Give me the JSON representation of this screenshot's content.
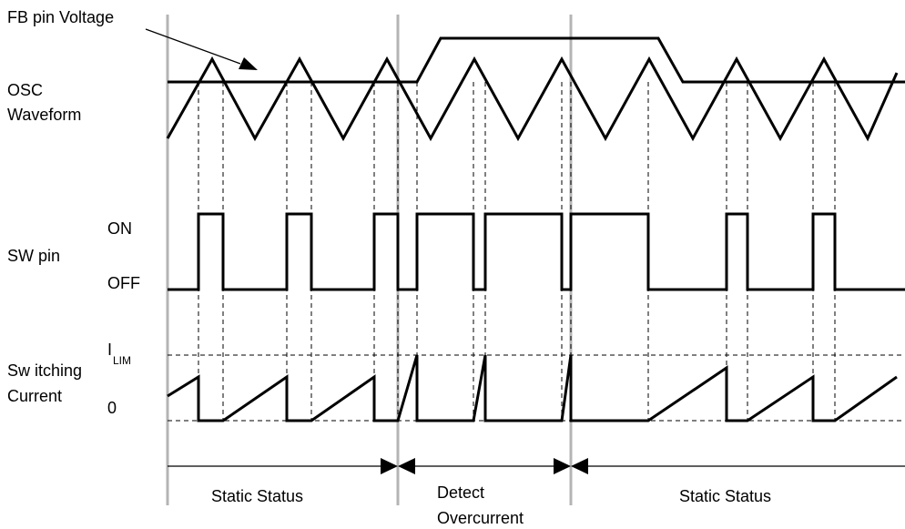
{
  "labels": {
    "fb_pin_voltage": "FB pin Voltage",
    "osc_line1": "OSC",
    "osc_line2": "Waveform",
    "on": "ON",
    "off": "OFF",
    "sw_pin": "SW pin",
    "switching_line1": "Sw itching",
    "switching_line2": "Current",
    "ilim_main": "I",
    "ilim_sub": "LIM",
    "zero": "0"
  },
  "status": {
    "static_left": "Static Status",
    "detect_line1": "Detect",
    "detect_line2": "Overcurrent",
    "static_right": "Static Status"
  }
}
